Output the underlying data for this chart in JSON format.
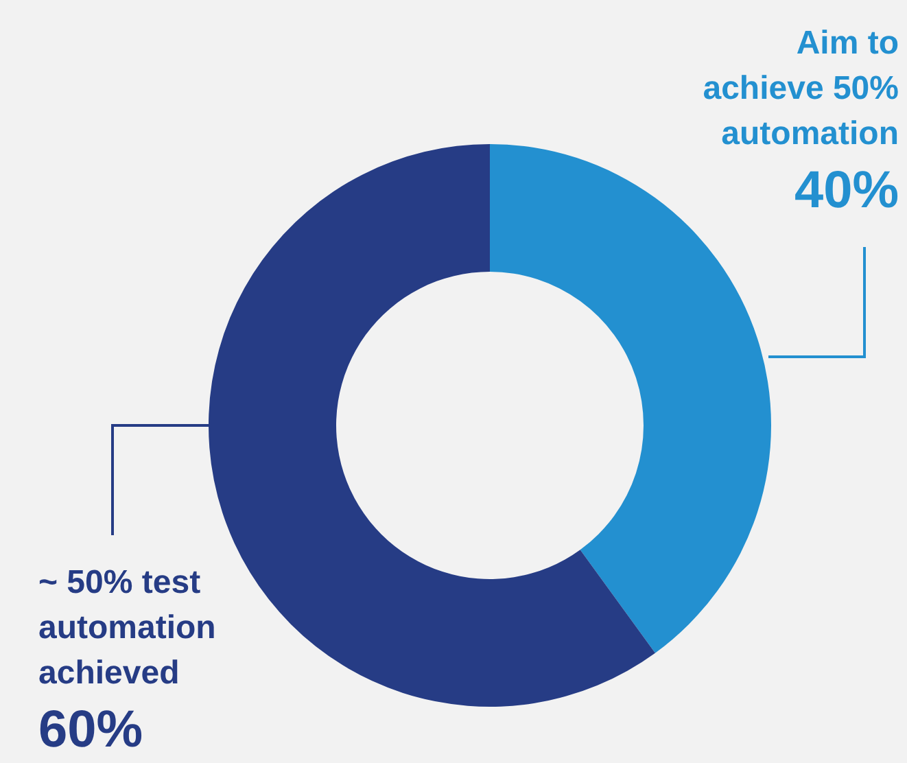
{
  "chart_data": {
    "type": "donut",
    "categories": [
      "Aim to achieve 50% automation",
      "~ 50% test automation achieved"
    ],
    "values": [
      40,
      60
    ],
    "colors": [
      "#2390d0",
      "#263c85"
    ],
    "value_labels": [
      "40%",
      "60%"
    ],
    "legend": false
  }
}
